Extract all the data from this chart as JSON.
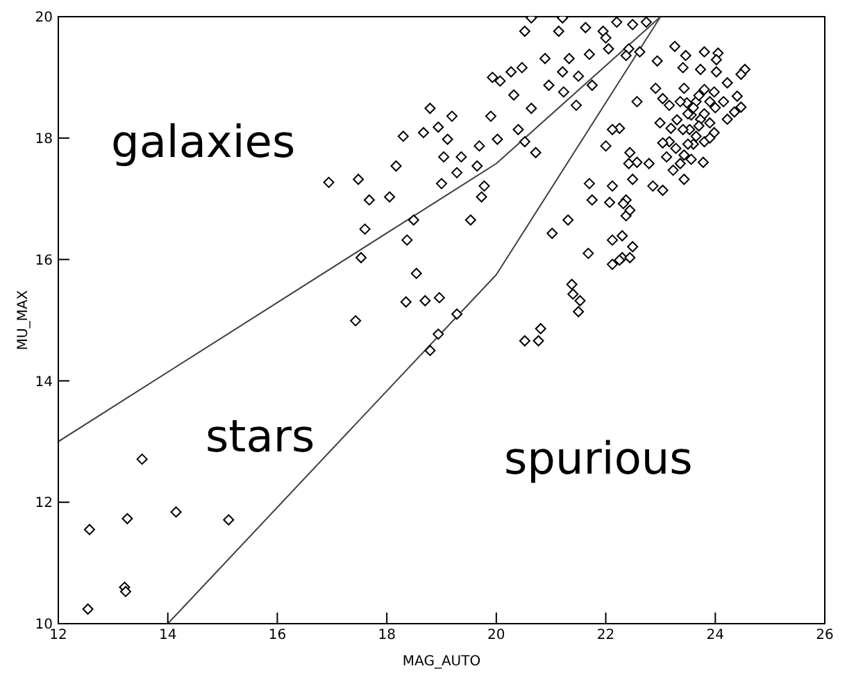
{
  "chart_data": {
    "type": "scatter",
    "xlabel": "MAG_AUTO",
    "ylabel": "MU_MAX",
    "xlim": [
      12,
      26
    ],
    "ylim": [
      10,
      20
    ],
    "xticks": [
      12,
      14,
      16,
      18,
      20,
      22,
      24,
      26
    ],
    "yticks": [
      10,
      12,
      14,
      16,
      18,
      20
    ],
    "marker": "diamond",
    "annotations": [
      "galaxies",
      "stars",
      "spurious"
    ],
    "series": [
      {
        "color": "#000000",
        "x": [
          12.57,
          13.26,
          13.53,
          14.15,
          15.11,
          13.21,
          13.23,
          12.54,
          16.94,
          17.48,
          17.53,
          17.43,
          17.6,
          17.68,
          18.05,
          18.17,
          18.3,
          18.37,
          18.54,
          18.49,
          18.7,
          18.79,
          18.67,
          18.94,
          19.04,
          19.0,
          19.28,
          19.11,
          19.19,
          19.36,
          19.65,
          19.78,
          19.53,
          19.69,
          19.73,
          19.9,
          20.02,
          19.93,
          20.07,
          20.27,
          20.47,
          20.32,
          20.4,
          20.64,
          20.52,
          20.72,
          20.89,
          20.96,
          21.21,
          21.33,
          21.23,
          21.46,
          21.5,
          21.7,
          21.75,
          21.95,
          22.05,
          22.2,
          21.14,
          21.21,
          21.63,
          22.49,
          22.62,
          22.74,
          20.64,
          20.52,
          19.28,
          18.96,
          18.94,
          18.35,
          18.79,
          20.81,
          20.52,
          22.0,
          22.25,
          22.12,
          22.44,
          21.7,
          21.68,
          21.02,
          21.31,
          21.38,
          21.4,
          21.53,
          21.5,
          20.77,
          22.12,
          22.3,
          22.37,
          22.44,
          22.49,
          22.37,
          23.26,
          23.46,
          23.8,
          24.05,
          24.02,
          24.02,
          23.73,
          23.41,
          22.94,
          24.54,
          24.47,
          24.22,
          24.47,
          24.35,
          24.22,
          24.4,
          24.15,
          23.9,
          23.65,
          23.48,
          23.36,
          23.16,
          23.04,
          22.91,
          23.43,
          23.8,
          23.98,
          23.56,
          23.73,
          23.9,
          23.98,
          23.8,
          23.65,
          23.53,
          23.41,
          23.19,
          22.99,
          23.16,
          23.04,
          23.28,
          23.43,
          23.56,
          23.78,
          23.36,
          23.11,
          22.57,
          22.42,
          22.79,
          23.23,
          23.43,
          22.86,
          23.04,
          22.49,
          22.57,
          22.12,
          22.0,
          22.42,
          22.37,
          21.75,
          22.07,
          22.32,
          22.12,
          22.3,
          22.25,
          22.44,
          23.5,
          23.6,
          23.7,
          23.3,
          23.8,
          23.6,
          23.9,
          24.0,
          23.5,
          23.7
        ],
        "values": [
          11.55,
          11.73,
          12.71,
          11.84,
          11.71,
          10.6,
          10.53,
          10.24,
          17.27,
          17.32,
          16.03,
          14.99,
          16.5,
          16.98,
          17.03,
          17.54,
          18.03,
          16.32,
          15.77,
          16.65,
          15.32,
          18.49,
          18.09,
          18.18,
          17.69,
          17.25,
          17.43,
          17.98,
          18.36,
          17.69,
          17.54,
          17.21,
          16.65,
          17.87,
          17.03,
          18.36,
          17.98,
          19.0,
          18.94,
          19.09,
          19.16,
          18.71,
          18.14,
          18.49,
          17.94,
          17.76,
          19.31,
          18.87,
          19.09,
          19.31,
          18.76,
          18.54,
          19.02,
          19.38,
          18.87,
          19.76,
          19.47,
          19.91,
          19.76,
          19.98,
          19.82,
          19.87,
          19.42,
          19.91,
          19.98,
          19.76,
          15.1,
          15.37,
          14.77,
          15.3,
          14.5,
          14.86,
          14.66,
          17.87,
          18.16,
          17.21,
          17.76,
          17.25,
          16.1,
          16.43,
          16.65,
          15.59,
          15.43,
          15.32,
          15.14,
          14.66,
          15.92,
          16.03,
          16.72,
          16.81,
          16.21,
          16.98,
          19.51,
          19.36,
          19.42,
          19.4,
          19.29,
          19.09,
          19.13,
          19.16,
          19.27,
          19.13,
          19.05,
          18.91,
          18.51,
          18.43,
          18.31,
          18.69,
          18.6,
          18.6,
          18.6,
          18.58,
          18.6,
          18.54,
          18.65,
          18.82,
          18.82,
          18.8,
          18.76,
          18.38,
          18.31,
          18.25,
          18.09,
          17.94,
          18.03,
          18.14,
          18.14,
          18.16,
          18.25,
          17.94,
          17.92,
          17.83,
          17.72,
          17.65,
          17.6,
          17.58,
          17.69,
          17.6,
          17.58,
          17.58,
          17.47,
          17.32,
          17.21,
          17.14,
          17.32,
          18.6,
          18.14,
          19.65,
          19.47,
          19.36,
          16.98,
          16.94,
          16.92,
          16.32,
          16.39,
          15.99,
          16.03,
          18.4,
          18.5,
          18.2,
          18.3,
          18.4,
          17.9,
          18.0,
          18.5,
          17.9,
          18.7
        ]
      },
      {
        "type": "line",
        "color": "#404040",
        "x": [
          12,
          20,
          23
        ],
        "values": [
          13,
          17.58,
          20
        ],
        "marker": "none",
        "line_style": "solid"
      },
      {
        "type": "line",
        "color": "#404040",
        "x": [
          14,
          20,
          23
        ],
        "values": [
          10,
          15.75,
          20
        ],
        "marker": "none",
        "line_style": "solid"
      }
    ]
  }
}
